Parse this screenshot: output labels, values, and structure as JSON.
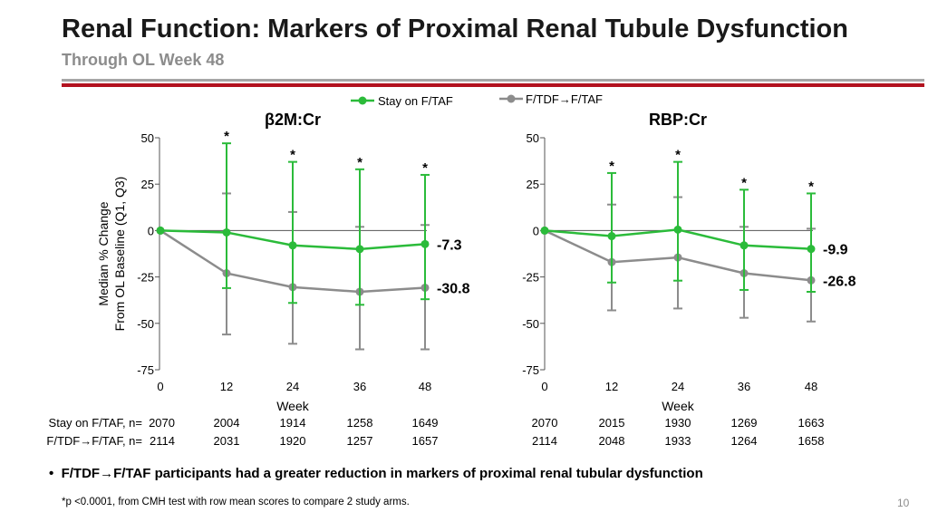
{
  "title": "Renal Function: Markers of Proximal Renal Tubule Dysfunction",
  "subtitle": "Through OL Week 48",
  "colors": {
    "green": "#2bbb3a",
    "gray": "#8c8c8c",
    "red": "#b3121f"
  },
  "legend": {
    "series1": "Stay on F/TAF",
    "series2": "F/TDF→F/TAF"
  },
  "ylabel_line1": "Median % Change",
  "ylabel_line2": "From OL Baseline (Q1, Q3)",
  "chart_data": [
    {
      "type": "line",
      "title": "β2M:Cr",
      "x": [
        0,
        12,
        24,
        36,
        48
      ],
      "x_ticks": [
        "0",
        "12",
        "24",
        "36",
        "48"
      ],
      "xlabel": "Week",
      "ylabel": "Median % Change From OL Baseline (Q1, Q3)",
      "ylim": [
        -75,
        50
      ],
      "y_ticks": [
        50,
        25,
        0,
        -25,
        -50,
        -75
      ],
      "significance": [
        "",
        "*",
        "*",
        "*",
        "*"
      ],
      "series": [
        {
          "name": "Stay on F/TAF",
          "values": [
            0,
            -1,
            -8,
            -10,
            -7.3
          ],
          "q1": [
            0,
            -31,
            -39,
            -40,
            -37
          ],
          "q3": [
            0,
            47,
            37,
            33,
            30
          ],
          "end_label": "-7.3"
        },
        {
          "name": "F/TDF→F/TAF",
          "values": [
            0,
            -23,
            -30.5,
            -33,
            -30.8
          ],
          "q1": [
            0,
            -56,
            -61,
            -64,
            -64
          ],
          "q3": [
            0,
            20,
            10,
            2,
            3
          ],
          "end_label": "-30.8"
        }
      ]
    },
    {
      "type": "line",
      "title": "RBP:Cr",
      "x": [
        0,
        12,
        24,
        36,
        48
      ],
      "x_ticks": [
        "0",
        "12",
        "24",
        "36",
        "48"
      ],
      "xlabel": "Week",
      "ylim": [
        -75,
        50
      ],
      "y_ticks": [
        50,
        25,
        0,
        -25,
        -50,
        -75
      ],
      "significance": [
        "",
        "*",
        "*",
        "*",
        "*"
      ],
      "series": [
        {
          "name": "Stay on F/TAF",
          "values": [
            0,
            -3,
            0.5,
            -8,
            -9.9
          ],
          "q1": [
            0,
            -28,
            -27,
            -32,
            -33
          ],
          "q3": [
            0,
            31,
            37,
            22,
            20
          ],
          "end_label": "-9.9"
        },
        {
          "name": "F/TDF→F/TAF",
          "values": [
            0,
            -17,
            -14.5,
            -23,
            -26.8
          ],
          "q1": [
            0,
            -43,
            -42,
            -47,
            -49
          ],
          "q3": [
            0,
            14,
            18,
            2,
            1
          ],
          "end_label": "-26.8"
        }
      ]
    }
  ],
  "n_table": {
    "row1_label": "Stay on F/TAF, n=",
    "row2_label": "F/TDF→F/TAF, n=",
    "left_row1": [
      "2070",
      "2004",
      "1914",
      "1258",
      "1649"
    ],
    "left_row2": [
      "2114",
      "2031",
      "1920",
      "1257",
      "1657"
    ],
    "right_row1": [
      "2070",
      "2015",
      "1930",
      "1269",
      "1663"
    ],
    "right_row2": [
      "2114",
      "2048",
      "1933",
      "1264",
      "1658"
    ]
  },
  "bullet": "F/TDF→F/TAF participants had a greater reduction in markers of proximal renal tubular dysfunction",
  "footnote": "*p <0.0001, from CMH test with row mean scores to compare 2 study arms.",
  "page_number": "10"
}
